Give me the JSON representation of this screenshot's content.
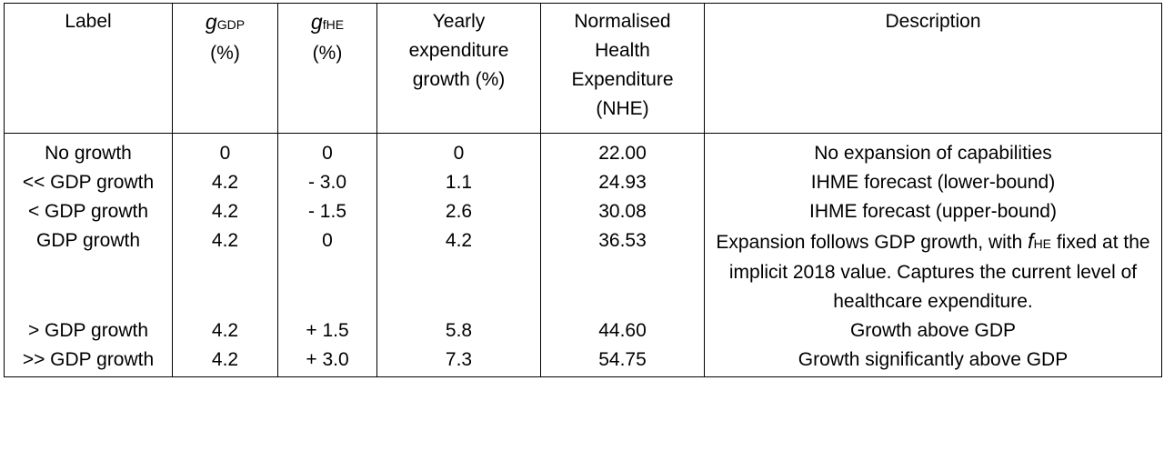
{
  "headers": {
    "label": "Label",
    "g_gdp_var": "g",
    "g_gdp_sub": "GDP",
    "g_gdp_unit": "(%)",
    "g_fhe_var": "g",
    "g_fhe_sub": "fHE",
    "g_fhe_unit": "(%)",
    "yearly_line1": "Yearly",
    "yearly_line2": "expenditure",
    "yearly_line3": "growth (%)",
    "nhe_line1": "Normalised",
    "nhe_line2": "Health",
    "nhe_line3": "Expenditure",
    "nhe_line4": "(NHE)",
    "description": "Description"
  },
  "rows": [
    {
      "label": "No growth",
      "g_gdp": "0",
      "g_fhe": "0",
      "yearly": "0",
      "nhe": "22.00",
      "description": "No expansion of capabilities"
    },
    {
      "label": "<< GDP growth",
      "g_gdp": "4.2",
      "g_fhe": "- 3.0",
      "yearly": "1.1",
      "nhe": "24.93",
      "description": "IHME forecast (lower-bound)"
    },
    {
      "label": "< GDP growth",
      "g_gdp": "4.2",
      "g_fhe": "- 1.5",
      "yearly": "2.6",
      "nhe": "30.08",
      "description": "IHME forecast (upper-bound)"
    },
    {
      "label": "GDP growth",
      "g_gdp": "4.2",
      "g_fhe": "0",
      "yearly": "4.2",
      "nhe": "36.53",
      "description_pre": "Expansion follows GDP growth, with ",
      "description_var": "f",
      "description_sub": "HE",
      "description_post": " fixed at the implicit 2018 value. Captures the current level of healthcare expenditure."
    },
    {
      "label": "> GDP growth",
      "g_gdp": "4.2",
      "g_fhe": "+ 1.5",
      "yearly": "5.8",
      "nhe": "44.60",
      "description": "Growth above GDP"
    },
    {
      "label": ">> GDP growth",
      "g_gdp": "4.2",
      "g_fhe": "+ 3.0",
      "yearly": "7.3",
      "nhe": "54.75",
      "description": "Growth significantly above GDP"
    }
  ]
}
